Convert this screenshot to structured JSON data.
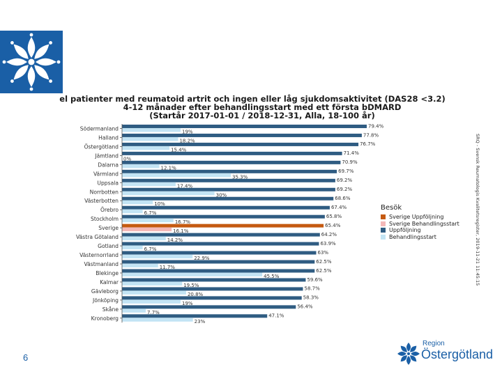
{
  "slide": {
    "page_number": "6",
    "region_small": "Region",
    "region_big": "Östergötland"
  },
  "chart_data": {
    "type": "bar",
    "title_lines": [
      "el patienter med reumatoid artrit och ingen eller låg sjukdomsaktivitet (DAS28 <3.2)",
      "4-12 månader efter behandlingsstart med ett första bDMARD",
      "(Startår 2017-01-01 / 2018-12-31, Alla, 18-100 år)"
    ],
    "source": "SRQ - Svensk Reumatologis Kvalitetsregister, 2019-11-21 11:45:15",
    "legend_title": "Besök",
    "legend": [
      "Sverige Uppföljning",
      "Sverige Behandlingsstart",
      "Uppföljning",
      "Behandlingsstart"
    ],
    "colors": {
      "sverige_uppfoljning": "#c55a11",
      "sverige_behandlingsstart": "#f4b8b8",
      "uppfoljning": "#2f5c82",
      "behandlingsstart": "#c3e4f4"
    },
    "xlim": [
      0,
      100
    ],
    "categories": [
      "Södermanland",
      "Halland",
      "Östergötland",
      "Jämtland",
      "Dalarna",
      "Värmland",
      "Uppsala",
      "Norrbotten",
      "Västerbotten",
      "Örebro",
      "Stockholm",
      "Sverige",
      "Västra Götaland",
      "Gotland",
      "Västernorrland",
      "Västmanland",
      "Blekinge",
      "Kalmar",
      "Gävleborg",
      "Jönköping",
      "Skåne",
      "Kronoberg"
    ],
    "highlight": "Sverige",
    "series": [
      {
        "name": "Uppföljning",
        "values": [
          79.4,
          77.8,
          76.7,
          71.4,
          70.9,
          69.7,
          69.2,
          69.2,
          68.6,
          67.4,
          65.8,
          65.4,
          64.2,
          63.9,
          63,
          62.5,
          62.5,
          59.6,
          58.7,
          58.3,
          56.4,
          47.1
        ],
        "labels": [
          "79.4%",
          "77.8%",
          "76.7%",
          "71.4%",
          "70.9%",
          "69.7%",
          "69.2%",
          "69.2%",
          "68.6%",
          "67.4%",
          "65.8%",
          "65.4%",
          "64.2%",
          "63.9%",
          "63%",
          "62.5%",
          "62.5%",
          "59.6%",
          "58.7%",
          "58.3%",
          "56.4%",
          "47.1%"
        ]
      },
      {
        "name": "Behandlingsstart",
        "values": [
          19,
          18.2,
          15.4,
          0,
          12.1,
          35.3,
          17.4,
          30,
          10,
          6.7,
          16.7,
          16.1,
          14.2,
          6.7,
          22.9,
          11.7,
          45.5,
          19.5,
          20.8,
          19,
          7.7,
          23
        ],
        "labels": [
          "19%",
          "18.2%",
          "15.4%",
          "0%",
          "12.1%",
          "35.3%",
          "17.4%",
          "30%",
          "10%",
          "6.7%",
          "16.7%",
          "16.1%",
          "14.2%",
          "6.7%",
          "22.9%",
          "11.7%",
          "45.5%",
          "19.5%",
          "20.8%",
          "19%",
          "7.7%",
          "23%"
        ]
      }
    ]
  }
}
